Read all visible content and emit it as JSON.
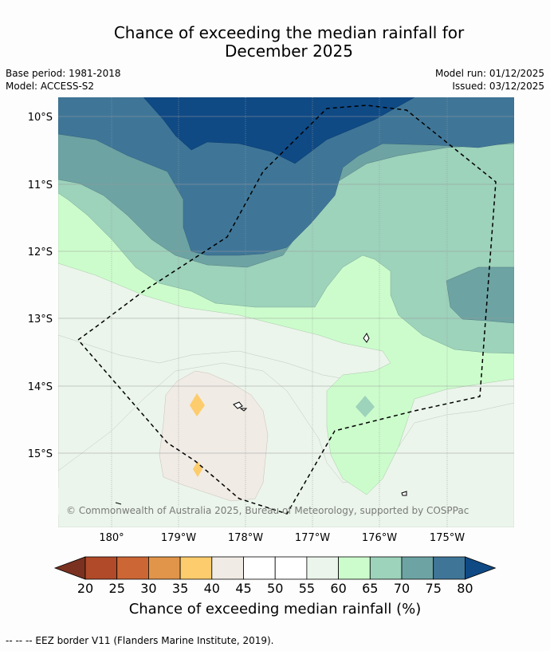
{
  "title_line1": "Chance of exceeding the median rainfall for",
  "title_line2": "December 2025",
  "meta": {
    "base_period": "Base period: 1981-2018",
    "model": "Model: ACCESS-S2",
    "model_run": "Model run: 01/12/2025",
    "issued": "Issued: 03/12/2025"
  },
  "map": {
    "lat_labels": [
      "10°S",
      "11°S",
      "12°S",
      "13°S",
      "14°S",
      "15°S"
    ],
    "lon_labels": [
      "180°",
      "179°W",
      "178°W",
      "177°W",
      "176°W",
      "175°W"
    ],
    "copyright": "© Commonwealth of Australia 2025, Bureau of Meteorology, supported by COSPPac"
  },
  "colorbar": {
    "ticks": [
      "20",
      "25",
      "30",
      "35",
      "40",
      "45",
      "50",
      "55",
      "60",
      "65",
      "70",
      "75",
      "80"
    ],
    "colors": [
      "#7a3120",
      "#b04a28",
      "#cc6634",
      "#e0954a",
      "#fdcc6c",
      "#f0ebe4",
      "#ffffff",
      "#ffffff",
      "#ebf5eb",
      "#ccfccc",
      "#9dd2bb",
      "#6da3a3",
      "#3f7698",
      "#0f4a85"
    ],
    "label": "Chance of exceeding median rainfall (%)"
  },
  "footer": "--  --  -- EEZ border V11 (Flanders Marine Institute, 2019)."
}
